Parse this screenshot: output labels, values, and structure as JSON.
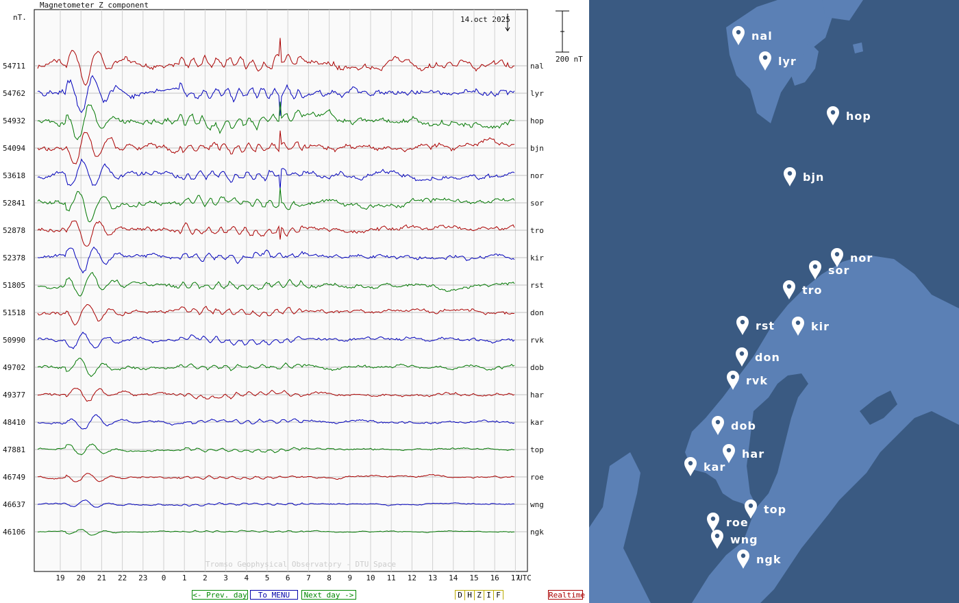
{
  "chart_data": {
    "type": "line",
    "title": "Magnetometer Z component",
    "date_label": "14.oct 2025",
    "y_unit": "nT.",
    "scale_label": "200 nT",
    "x_unit": "UTC",
    "x_ticks": [
      "19",
      "20",
      "21",
      "22",
      "23",
      "0",
      "1",
      "2",
      "3",
      "4",
      "5",
      "6",
      "7",
      "8",
      "9",
      "10",
      "11",
      "12",
      "13",
      "14",
      "15",
      "16",
      "17"
    ],
    "watermark": "Tromso Geophysical Observatory - DTU Space",
    "series": [
      {
        "name": "nal",
        "baseline": "54711",
        "color": "#aa0000"
      },
      {
        "name": "lyr",
        "baseline": "54762",
        "color": "#0000bb"
      },
      {
        "name": "hop",
        "baseline": "54932",
        "color": "#007700"
      },
      {
        "name": "bjn",
        "baseline": "54094",
        "color": "#aa0000"
      },
      {
        "name": "nor",
        "baseline": "53618",
        "color": "#0000bb"
      },
      {
        "name": "sor",
        "baseline": "52841",
        "color": "#007700"
      },
      {
        "name": "tro",
        "baseline": "52878",
        "color": "#aa0000"
      },
      {
        "name": "kir",
        "baseline": "52378",
        "color": "#0000bb"
      },
      {
        "name": "rst",
        "baseline": "51805",
        "color": "#007700"
      },
      {
        "name": "don",
        "baseline": "51518",
        "color": "#aa0000"
      },
      {
        "name": "rvk",
        "baseline": "50990",
        "color": "#0000bb"
      },
      {
        "name": "dob",
        "baseline": "49702",
        "color": "#007700"
      },
      {
        "name": "har",
        "baseline": "49377",
        "color": "#aa0000"
      },
      {
        "name": "kar",
        "baseline": "48410",
        "color": "#0000bb"
      },
      {
        "name": "top",
        "baseline": "47881",
        "color": "#007700"
      },
      {
        "name": "roe",
        "baseline": "46749",
        "color": "#aa0000"
      },
      {
        "name": "wng",
        "baseline": "46637",
        "color": "#0000bb"
      },
      {
        "name": "ngk",
        "baseline": "46106",
        "color": "#007700"
      }
    ]
  },
  "nav": {
    "prev": "<- Prev. day",
    "menu": "To MENU",
    "next": "Next day ->",
    "components": [
      "D",
      "H",
      "Z",
      "I",
      "F"
    ],
    "realtime": "Realtime"
  },
  "map": {
    "stations": [
      "nal",
      "lyr",
      "hop",
      "bjn",
      "nor",
      "sor",
      "tro",
      "rst",
      "kir",
      "don",
      "rvk",
      "dob",
      "har",
      "kar",
      "top",
      "roe",
      "wng",
      "ngk"
    ]
  },
  "colors": {
    "map_sea": "#3a5a82",
    "map_land": "#5b80b5",
    "green_button": "#008800",
    "blue_button": "#0000aa",
    "yellow_button": "#bbaa00",
    "red_button": "#aa0000"
  }
}
